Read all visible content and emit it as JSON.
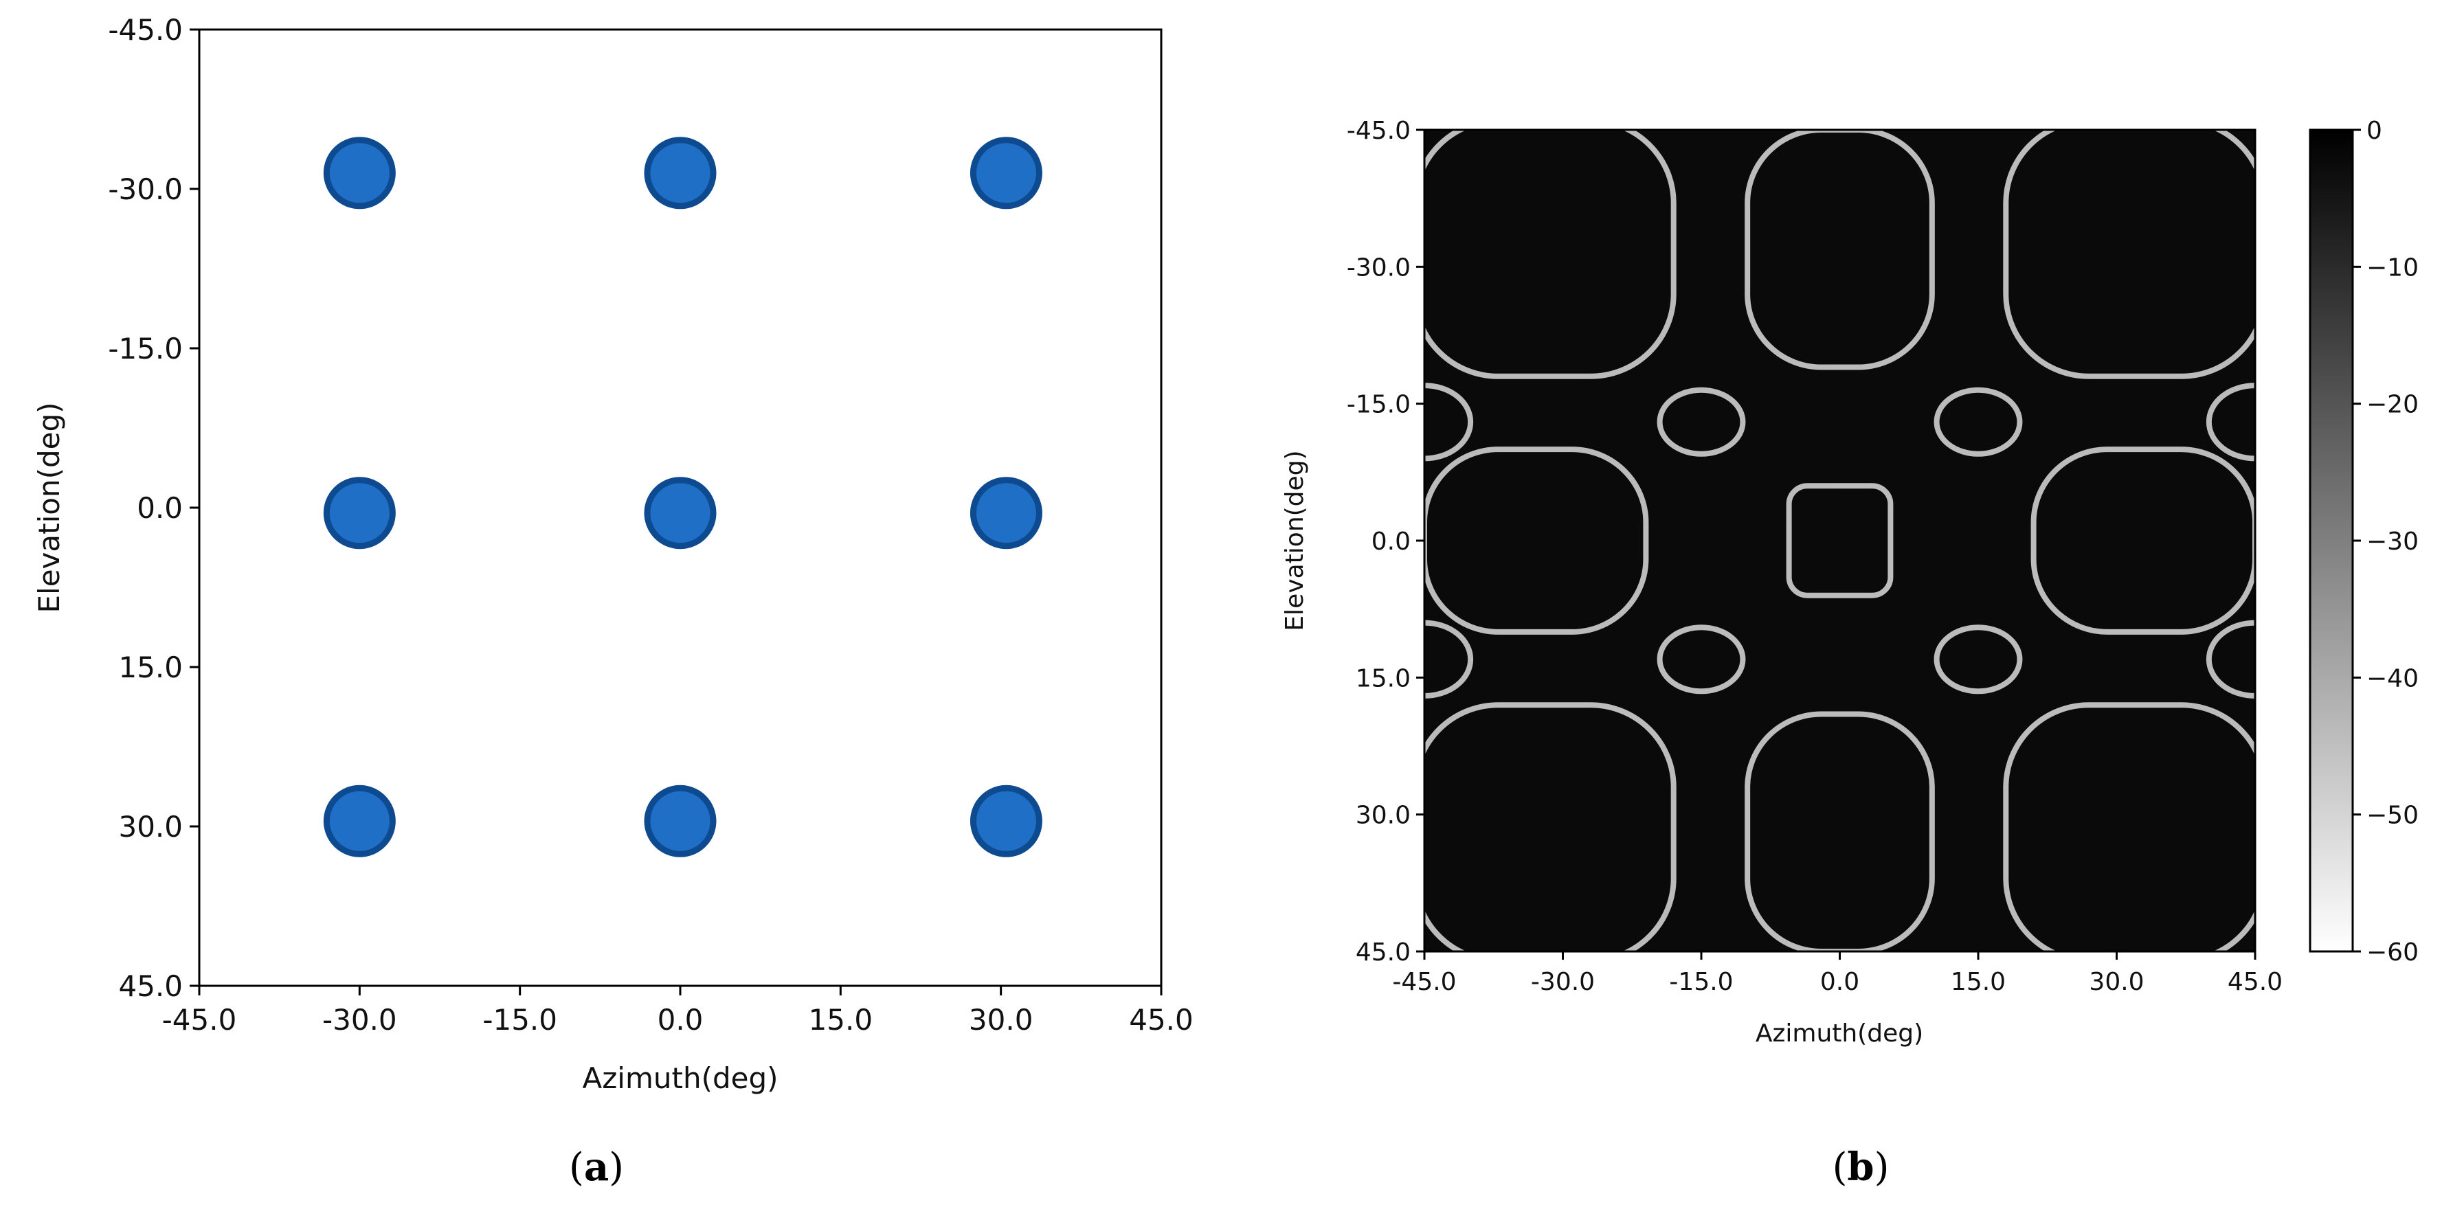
{
  "chart_data": [
    {
      "type": "scatter",
      "xlabel": "Azimuth(deg)",
      "ylabel": "Elevation(deg)",
      "xlim": [
        -45,
        45
      ],
      "ylim": [
        -45,
        45
      ],
      "y_inverted": true,
      "xticks": [
        "-45.0",
        "-30.0",
        "-15.0",
        "0.0",
        "15.0",
        "30.0",
        "45.0"
      ],
      "yticks": [
        "-45.0",
        "-30.0",
        "-15.0",
        "0.0",
        "15.0",
        "30.0",
        "45.0"
      ],
      "points": [
        {
          "x": -30,
          "y": -31.5
        },
        {
          "x": 0,
          "y": -31.5
        },
        {
          "x": 30.5,
          "y": -31.5
        },
        {
          "x": -30,
          "y": 0.5
        },
        {
          "x": 0,
          "y": 0.5
        },
        {
          "x": 30.5,
          "y": 0.5
        },
        {
          "x": -30,
          "y": 29.5
        },
        {
          "x": 0,
          "y": 29.5
        },
        {
          "x": 30.5,
          "y": 29.5
        }
      ],
      "marker_color": "#1f6fc7",
      "marker_edge_color": "#0d4a8f",
      "grid": false,
      "panel_label": "a"
    },
    {
      "type": "heatmap",
      "xlabel": "Azimuth(deg)",
      "ylabel": "Elevation(deg)",
      "xlim": [
        -45,
        45
      ],
      "ylim": [
        -45,
        45
      ],
      "y_inverted": true,
      "xticks": [
        "-45.0",
        "-30.0",
        "-15.0",
        "0.0",
        "15.0",
        "30.0",
        "45.0"
      ],
      "yticks": [
        "-45.0",
        "-30.0",
        "-15.0",
        "0.0",
        "15.0",
        "30.0",
        "45.0"
      ],
      "colorbar": {
        "range": [
          -60,
          0
        ],
        "ticks": [
          "0",
          "−10",
          "−20",
          "−30",
          "−40",
          "−50",
          "−60"
        ],
        "colormap": "gray (black = 0, white = -60)"
      },
      "element_positions_deg": {
        "azimuth": [
          -30,
          0,
          30
        ],
        "elevation": [
          -30,
          0,
          30
        ]
      },
      "grid": false,
      "panel_label": "b"
    }
  ]
}
